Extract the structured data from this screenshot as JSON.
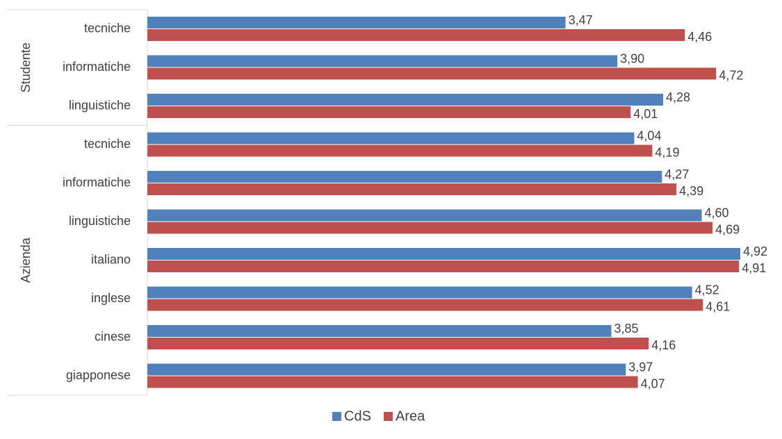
{
  "chart_data": {
    "type": "bar",
    "orientation": "horizontal",
    "groups": [
      {
        "name": "Studente",
        "categories": [
          "tecniche",
          "informatiche",
          "linguistiche"
        ]
      },
      {
        "name": "Azienda",
        "categories": [
          "tecniche",
          "informatiche",
          "linguistiche",
          "italiano",
          "inglese",
          "cinese",
          "giapponese"
        ]
      }
    ],
    "series": [
      {
        "name": "CdS",
        "color": "#4f81bd",
        "values": [
          3.47,
          3.9,
          4.28,
          4.04,
          4.27,
          4.6,
          4.92,
          4.52,
          3.85,
          3.97
        ],
        "labels": [
          "3,47",
          "3,90",
          "4,28",
          "4,04",
          "4,27",
          "4,60",
          "4,92",
          "4,52",
          "3,85",
          "3,97"
        ]
      },
      {
        "name": "Area",
        "color": "#c0504d",
        "values": [
          4.46,
          4.72,
          4.01,
          4.19,
          4.39,
          4.69,
          4.91,
          4.61,
          4.16,
          4.07
        ],
        "labels": [
          "4,46",
          "4,72",
          "4,01",
          "4,19",
          "4,39",
          "4,69",
          "4,91",
          "4,61",
          "4,16",
          "4,07"
        ]
      }
    ],
    "xlim": [
      0,
      5
    ],
    "legend_position": "bottom",
    "grid": false,
    "title": ""
  }
}
